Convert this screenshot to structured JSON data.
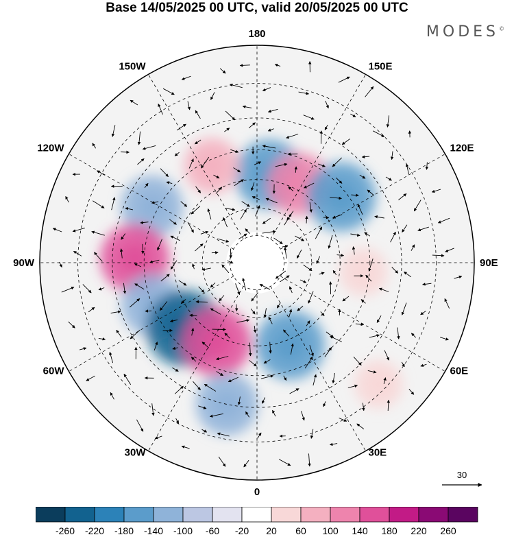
{
  "title": "Base 14/05/2025 00 UTC, valid 20/05/2025 00 UTC",
  "brand": "MODES",
  "brand_mark": "©",
  "projection": "north-polar-stereographic",
  "longitude_labels": [
    {
      "text": "180",
      "lon": 180
    },
    {
      "text": "150E",
      "lon": 150
    },
    {
      "text": "120E",
      "lon": 120
    },
    {
      "text": "90E",
      "lon": 90
    },
    {
      "text": "60E",
      "lon": 60
    },
    {
      "text": "30E",
      "lon": 30
    },
    {
      "text": "0",
      "lon": 0
    },
    {
      "text": "30W",
      "lon": -30
    },
    {
      "text": "60W",
      "lon": -60
    },
    {
      "text": "90W",
      "lon": -90
    },
    {
      "text": "120W",
      "lon": -120
    },
    {
      "text": "150W",
      "lon": -150
    }
  ],
  "latitude_circles": [
    80,
    70,
    60,
    50,
    40,
    30
  ],
  "reference_vector": {
    "value": "30"
  },
  "colorbar": {
    "ticks": [
      "-260",
      "-220",
      "-180",
      "-140",
      "-100",
      "-60",
      "-20",
      "20",
      "60",
      "100",
      "140",
      "180",
      "220",
      "260"
    ],
    "colors": [
      "#0b3d5c",
      "#12628f",
      "#2c82b8",
      "#5b9ccb",
      "#8fb3d9",
      "#bcc7e3",
      "#e3e3f0",
      "#ffffff",
      "#f8d8d8",
      "#f4b0c0",
      "#ee84ad",
      "#e0509a",
      "#c21b86",
      "#8a0a74",
      "#5a0560"
    ]
  },
  "anomalies": [
    {
      "lon": 172,
      "lat": 58,
      "value": -180,
      "color": "#5b9ccb"
    },
    {
      "lon": -155,
      "lat": 52,
      "value": 100,
      "color": "#f4b0c0"
    },
    {
      "lon": 152,
      "lat": 58,
      "value": 140,
      "color": "#ee84ad"
    },
    {
      "lon": 128,
      "lat": 52,
      "value": -180,
      "color": "#5b9ccb"
    },
    {
      "lon": -118,
      "lat": 48,
      "value": -140,
      "color": "#8fb3d9"
    },
    {
      "lon": -92,
      "lat": 47,
      "value": 180,
      "color": "#e0509a"
    },
    {
      "lon": -68,
      "lat": 50,
      "value": -140,
      "color": "#8fb3d9"
    },
    {
      "lon": -48,
      "lat": 55,
      "value": -220,
      "color": "#12628f"
    },
    {
      "lon": -27,
      "lat": 58,
      "value": 180,
      "color": "#e0509a"
    },
    {
      "lon": 22,
      "lat": 58,
      "value": -180,
      "color": "#5b9ccb"
    },
    {
      "lon": -12,
      "lat": 40,
      "value": -140,
      "color": "#8fb3d9"
    },
    {
      "lon": 85,
      "lat": 52,
      "value": 60,
      "color": "#f8d8d8"
    },
    {
      "lon": 45,
      "lat": 32,
      "value": 60,
      "color": "#f8d8d8"
    }
  ]
}
